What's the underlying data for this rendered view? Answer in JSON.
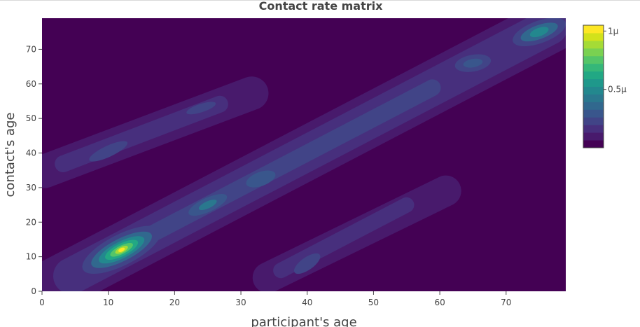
{
  "chart_data": {
    "type": "heatmap",
    "subtype": "contour",
    "title": "Contact rate matrix",
    "xlabel": "participant's age",
    "ylabel": "contact's age",
    "xlim": [
      0,
      79
    ],
    "ylim": [
      0,
      79
    ],
    "x_ticks": [
      0,
      10,
      20,
      30,
      40,
      50,
      60,
      70
    ],
    "y_ticks": [
      0,
      10,
      20,
      30,
      40,
      50,
      60,
      70
    ],
    "colorscale": "viridis",
    "colorbar": {
      "min": 0,
      "max": 1.05e-06,
      "tick_values": [
        5e-07,
        1e-06
      ],
      "tick_labels": [
        "0.5μ",
        "1μ"
      ],
      "levels": [
        "#440154",
        "#481a6c",
        "#472f7d",
        "#414487",
        "#39568c",
        "#31688e",
        "#2a788e",
        "#23888e",
        "#1f988b",
        "#22a884",
        "#35b779",
        "#54c568",
        "#7ad151",
        "#a5db36",
        "#d2e21b",
        "#fde725"
      ]
    },
    "features": [
      {
        "kind": "main-diagonal",
        "from": [
          0,
          0
        ],
        "to": [
          79,
          79
        ],
        "peak": 1.05e-06,
        "peak_at": [
          12,
          12
        ]
      },
      {
        "kind": "upper-off-diagonal",
        "from": [
          0,
          34
        ],
        "to": [
          34,
          60
        ],
        "peak": 3.5e-07,
        "peak_at": [
          10,
          40
        ]
      },
      {
        "kind": "lower-off-diagonal",
        "from": [
          32,
          2
        ],
        "to": [
          62,
          32
        ],
        "peak": 3.5e-07,
        "peak_at": [
          40,
          8
        ]
      },
      {
        "kind": "hotspot",
        "at": [
          25,
          25
        ],
        "value": 5e-07
      },
      {
        "kind": "hotspot",
        "at": [
          75,
          75
        ],
        "value": 5.5e-07
      },
      {
        "kind": "hotspot",
        "at": [
          65,
          66
        ],
        "value": 3.5e-07
      }
    ]
  }
}
